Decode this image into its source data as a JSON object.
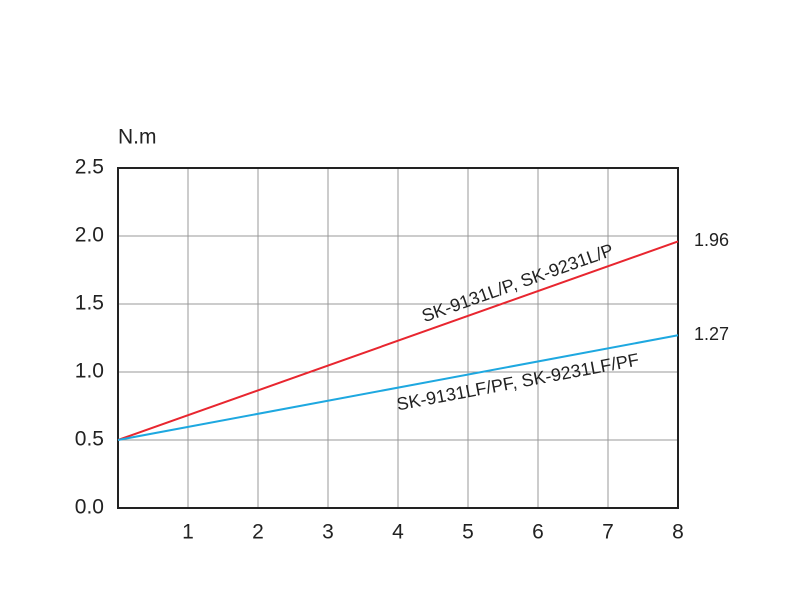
{
  "chart_data": {
    "type": "line",
    "y_label": "N.m",
    "x": [
      0,
      8
    ],
    "series": [
      {
        "name": "SK-9131L/P, SK-9231L/P",
        "color": "#e8262f",
        "values": [
          0.5,
          1.96
        ]
      },
      {
        "name": "SK-9131LF/PF, SK-9231LF/PF",
        "color": "#1ea8e0",
        "values": [
          0.5,
          1.27
        ]
      }
    ],
    "xlim": [
      0,
      8
    ],
    "xticks": [
      1,
      2,
      3,
      4,
      5,
      6,
      7,
      8
    ],
    "ylim": [
      0,
      2.5
    ],
    "yticks": [
      {
        "value": 0,
        "label": "0.0"
      },
      0.5,
      {
        "value": 1,
        "label": "1.0"
      },
      1.5,
      {
        "value": 2,
        "label": "2.0"
      },
      2.5
    ],
    "grid": true
  }
}
